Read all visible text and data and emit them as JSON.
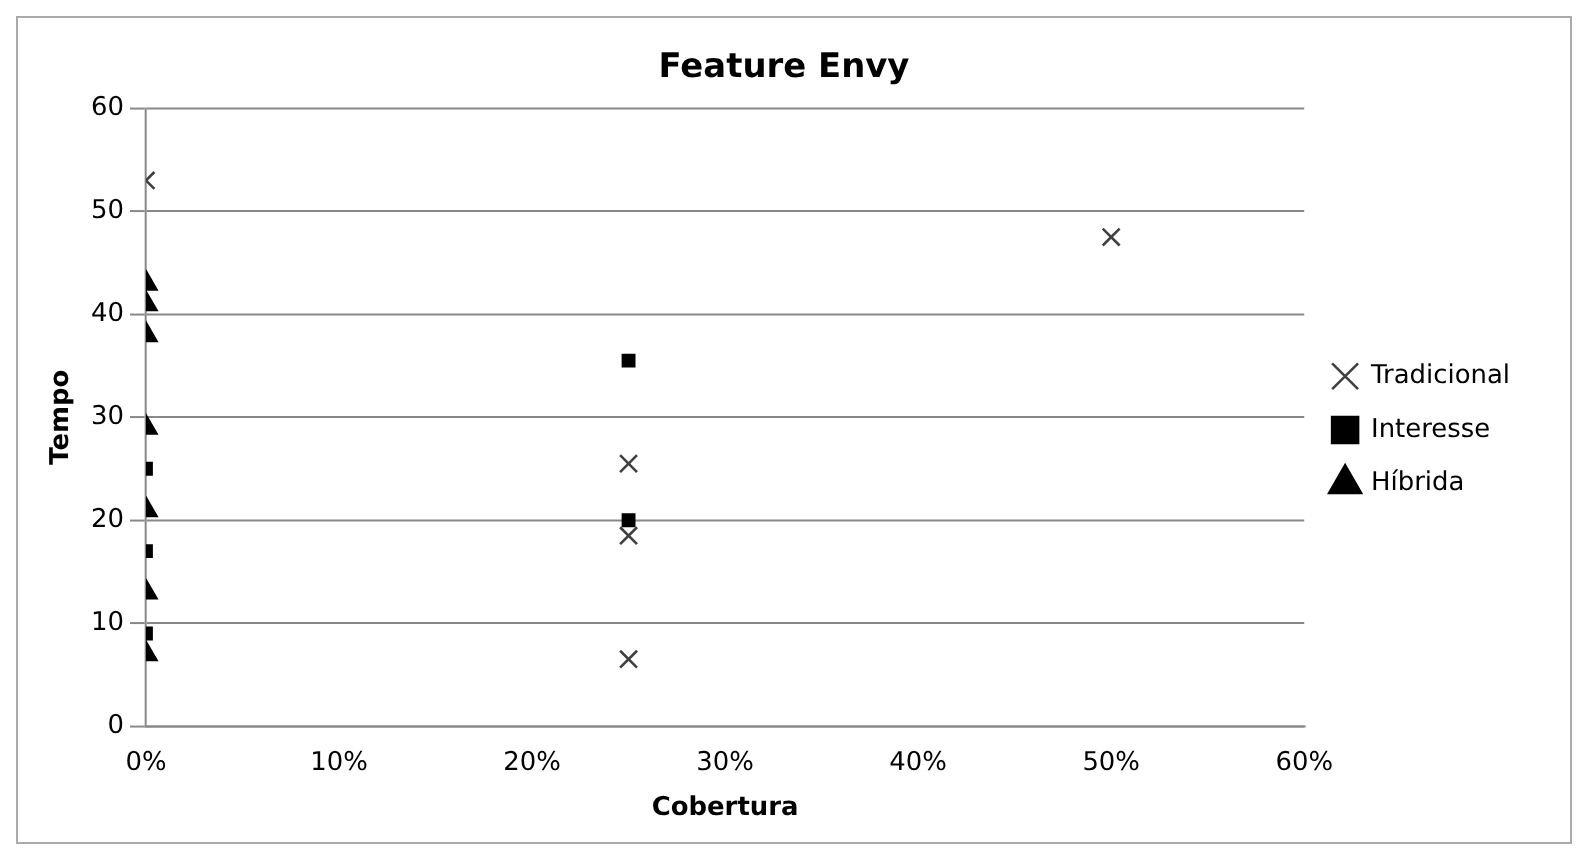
{
  "chart_data": {
    "type": "scatter",
    "title": "Feature Envy",
    "xlabel": "Cobertura",
    "ylabel": "Tempo",
    "xlim": [
      0,
      0.6
    ],
    "xticks": [
      {
        "value": 0,
        "label": "0%"
      },
      {
        "value": 0.1,
        "label": "10%"
      },
      {
        "value": 0.2,
        "label": "20%"
      },
      {
        "value": 0.3,
        "label": "30%"
      },
      {
        "value": 0.4,
        "label": "40%"
      },
      {
        "value": 0.5,
        "label": "50%"
      },
      {
        "value": 0.6,
        "label": "60%"
      }
    ],
    "ylim": [
      0,
      60
    ],
    "yticks": [
      0,
      10,
      20,
      30,
      40,
      50,
      60
    ],
    "grid": "y",
    "legend": "right",
    "series": [
      {
        "name": "Tradicional",
        "color": "#404040",
        "marker": "cross",
        "x": [
          0,
          0.25,
          0.25,
          0.25,
          0.5
        ],
        "values": [
          53,
          25.5,
          18.5,
          6.5,
          47.5
        ]
      },
      {
        "name": "Interesse",
        "color": "#000000",
        "marker": "square",
        "x": [
          0.25,
          0.25,
          0,
          0,
          0
        ],
        "values": [
          35.5,
          20,
          9,
          17,
          25
        ]
      },
      {
        "name": "Híbrida",
        "color": "#000000",
        "marker": "triangle",
        "x": [
          0,
          0,
          0,
          0,
          0,
          0,
          0
        ],
        "values": [
          38,
          41,
          43,
          7,
          13,
          21,
          29
        ]
      }
    ]
  }
}
